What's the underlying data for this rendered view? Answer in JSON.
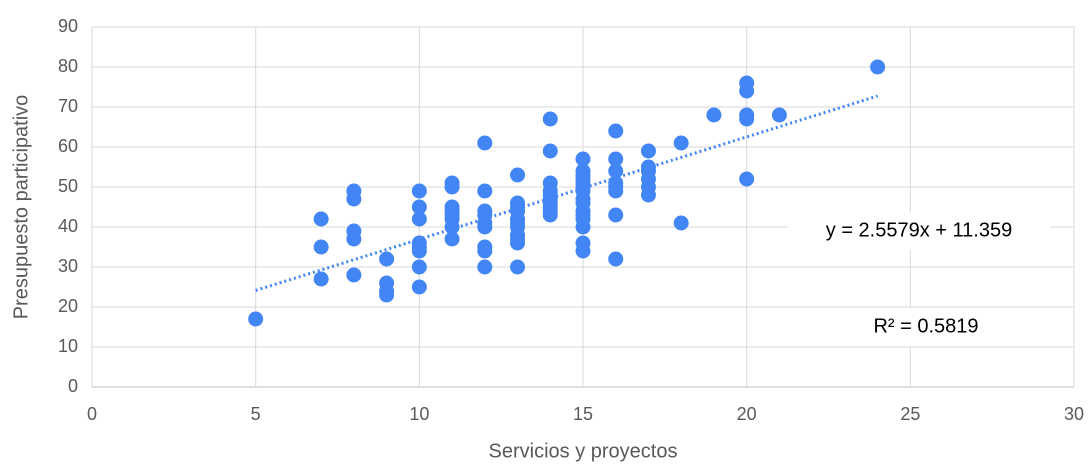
{
  "chart_data": {
    "type": "scatter",
    "x_label": "Servicios y proyectos",
    "y_label": "Presupuesto participativo",
    "xlim": [
      0,
      30
    ],
    "xticks": [
      0,
      5,
      10,
      15,
      20,
      25,
      30
    ],
    "ylim": [
      0,
      90
    ],
    "yticks": [
      0,
      10,
      20,
      30,
      40,
      50,
      60,
      70,
      80,
      90
    ],
    "grid": true,
    "series": [
      {
        "color": "#4285f4",
        "x": [
          5,
          7,
          7,
          7,
          8,
          8,
          8,
          8,
          8,
          9,
          9,
          9,
          9,
          10,
          10,
          10,
          10,
          10,
          10,
          10,
          10,
          11,
          11,
          11,
          11,
          11,
          11,
          11,
          11,
          12,
          12,
          12,
          12,
          12,
          12,
          12,
          12,
          12,
          13,
          13,
          13,
          13,
          13,
          13,
          13,
          13,
          13,
          13,
          13,
          14,
          14,
          14,
          14,
          14,
          14,
          14,
          14,
          14,
          14,
          15,
          15,
          15,
          15,
          15,
          15,
          15,
          15,
          15,
          15,
          15,
          15,
          15,
          15,
          15,
          16,
          16,
          16,
          16,
          16,
          16,
          16,
          16,
          17,
          17,
          17,
          17,
          17,
          17,
          18,
          18,
          19,
          20,
          20,
          20,
          20,
          20,
          21,
          24
        ],
        "values": [
          17,
          42,
          35,
          27,
          49,
          47,
          39,
          37,
          28,
          32,
          26,
          24,
          23,
          49,
          45,
          42,
          36,
          35,
          34,
          30,
          25,
          51,
          50,
          45,
          44,
          43,
          42,
          40,
          37,
          61,
          49,
          44,
          43,
          41,
          40,
          35,
          34,
          30,
          53,
          46,
          45,
          44,
          42,
          41,
          40,
          38,
          37,
          36,
          30,
          67,
          59,
          51,
          49,
          48,
          47,
          46,
          45,
          44,
          43,
          57,
          54,
          53,
          52,
          51,
          50,
          49,
          47,
          46,
          44,
          43,
          42,
          40,
          36,
          34,
          64,
          57,
          54,
          51,
          50,
          49,
          43,
          32,
          59,
          55,
          54,
          52,
          50,
          48,
          61,
          41,
          68,
          76,
          74,
          68,
          67,
          52,
          68,
          80
        ]
      }
    ],
    "trendline": {
      "slope": 2.5579,
      "intercept": 11.359,
      "color": "#4285f4",
      "equation": "y = 2.5579x + 11.359",
      "r_squared_label": "R² = 0.5819"
    }
  }
}
